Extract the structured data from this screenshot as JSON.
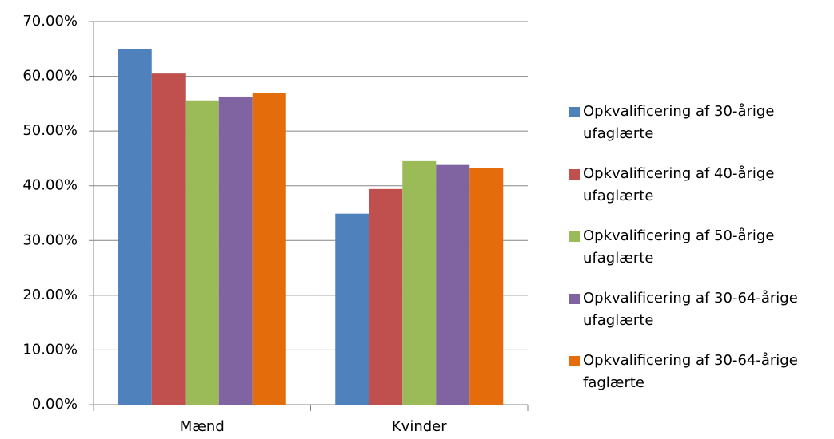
{
  "chart_data": {
    "type": "bar",
    "categories": [
      "Mænd",
      "Kvinder"
    ],
    "series": [
      {
        "name": "Opkvalificering af 30-årige ufaglærte",
        "color": "#4f81bd",
        "values": [
          65.0,
          34.9
        ]
      },
      {
        "name": "Opkvalificering af 40-årige ufaglærte",
        "color": "#c0504d",
        "values": [
          60.5,
          39.4
        ]
      },
      {
        "name": "Opkvalificering af 50-årige ufaglærte",
        "color": "#9bbb59",
        "values": [
          55.6,
          44.5
        ]
      },
      {
        "name": "Opkvalificering af 30-64-årige ufaglærte",
        "color": "#8064a2",
        "values": [
          56.3,
          43.8
        ]
      },
      {
        "name": "Opkvalificering af 30-64-årige faglærte",
        "color": "#e46c0a",
        "values": [
          56.9,
          43.2
        ]
      }
    ],
    "ylim": [
      0,
      70
    ],
    "yticks": [
      {
        "value": 0,
        "label": "0.00%"
      },
      {
        "value": 10,
        "label": "10.00%"
      },
      {
        "value": 20,
        "label": "20.00%"
      },
      {
        "value": 30,
        "label": "30.00%"
      },
      {
        "value": 40,
        "label": "40.00%"
      },
      {
        "value": 50,
        "label": "50.00%"
      },
      {
        "value": 60,
        "label": "60.00%"
      },
      {
        "value": 70,
        "label": "70.00%"
      }
    ],
    "grid": true,
    "legend": "right"
  }
}
